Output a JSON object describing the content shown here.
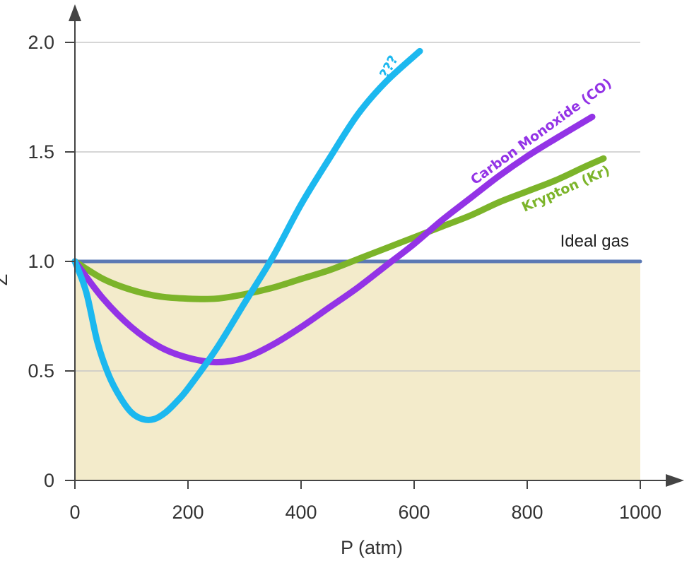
{
  "chart_data": {
    "type": "line",
    "xlabel": "P (atm)",
    "ylabel": "Z",
    "xlim": [
      0,
      1000
    ],
    "ylim": [
      0,
      2.0
    ],
    "x_ticks": [
      "0",
      "200",
      "400",
      "600",
      "800",
      "1000"
    ],
    "y_ticks": [
      "0",
      "0.5",
      "1.0",
      "1.5",
      "2.0"
    ],
    "grid": "horizontal",
    "shaded_region": {
      "y_from": 0,
      "y_to": 1.0,
      "color": "#f3ebcb"
    },
    "series": [
      {
        "name": "Ideal gas",
        "color": "#5b79b4",
        "x": [
          0,
          1000
        ],
        "y": [
          1.0,
          1.0
        ]
      },
      {
        "name": "Krypton (Kr)",
        "color": "#7cb42a",
        "x": [
          0,
          50,
          100,
          150,
          200,
          250,
          300,
          350,
          400,
          450,
          500,
          550,
          600,
          650,
          700,
          750,
          800,
          850,
          900,
          935
        ],
        "y": [
          1.0,
          0.92,
          0.87,
          0.84,
          0.83,
          0.83,
          0.85,
          0.88,
          0.92,
          0.96,
          1.01,
          1.06,
          1.11,
          1.16,
          1.21,
          1.27,
          1.32,
          1.37,
          1.43,
          1.47
        ]
      },
      {
        "name": "Carbon Monoxide (CO)",
        "color": "#9333e6",
        "x": [
          0,
          50,
          100,
          150,
          200,
          250,
          300,
          350,
          400,
          450,
          500,
          550,
          600,
          650,
          700,
          750,
          800,
          850,
          915
        ],
        "y": [
          1.0,
          0.83,
          0.7,
          0.61,
          0.56,
          0.54,
          0.56,
          0.62,
          0.7,
          0.79,
          0.88,
          0.98,
          1.08,
          1.19,
          1.29,
          1.39,
          1.48,
          1.56,
          1.66
        ]
      },
      {
        "name": "???",
        "color": "#1cb8ef",
        "x": [
          0,
          20,
          40,
          60,
          80,
          100,
          120,
          140,
          160,
          180,
          200,
          250,
          300,
          350,
          400,
          450,
          500,
          550,
          610
        ],
        "y": [
          1.0,
          0.86,
          0.63,
          0.48,
          0.38,
          0.31,
          0.28,
          0.28,
          0.31,
          0.36,
          0.42,
          0.6,
          0.81,
          1.02,
          1.26,
          1.47,
          1.67,
          1.82,
          1.96
        ]
      }
    ],
    "labels": {
      "ideal": "Ideal gas",
      "krypton": "Krypton (Kr)",
      "co": "Carbon Monoxide (CO)",
      "unknown": "???"
    }
  }
}
